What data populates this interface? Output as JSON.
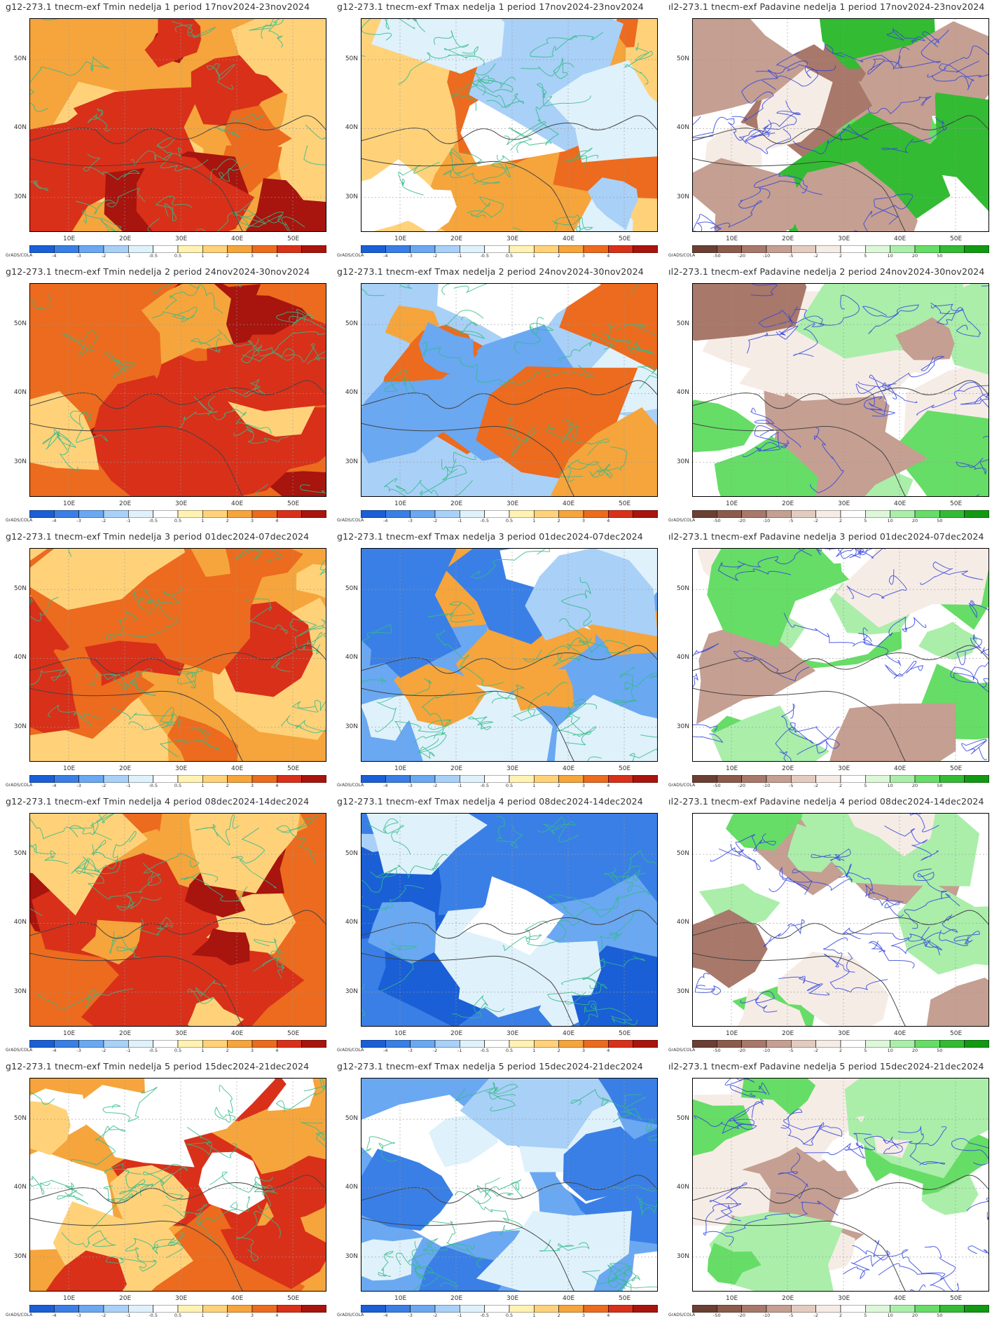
{
  "axes": {
    "lat_labels": [
      "50N",
      "40N",
      "30N"
    ],
    "lat_values": [
      50,
      40,
      30
    ],
    "lon_labels": [
      "10E",
      "20E",
      "30E",
      "40E",
      "50E"
    ],
    "lon_values": [
      10,
      20,
      30,
      40,
      50
    ],
    "lon_range": [
      3,
      56
    ],
    "lat_range": [
      25,
      56
    ]
  },
  "credit": "GrADS/COLA",
  "colorbars": {
    "temp": {
      "labels": [
        "-4",
        "-3",
        "-2",
        "-1",
        "-0.5",
        "0.5",
        "1",
        "2",
        "3",
        "4"
      ],
      "colors": [
        "#1a5fd6",
        "#3a7fe6",
        "#6aa8f2",
        "#a9d0f7",
        "#dff1fb",
        "#ffffff",
        "#fff2b3",
        "#ffd27a",
        "#f5a53c",
        "#ec6b1e",
        "#d9301a",
        "#a8140e"
      ]
    },
    "precip": {
      "labels": [
        "-50",
        "-20",
        "-10",
        "-5",
        "-2",
        "2",
        "5",
        "10",
        "20",
        "50"
      ],
      "colors": [
        "#6b3f33",
        "#8b5b4b",
        "#a8786a",
        "#c59f92",
        "#e3cbc0",
        "#f6ece6",
        "#ffffff",
        "#ddf7d8",
        "#aaeeaa",
        "#66dd66",
        "#33bb33",
        "#119911"
      ]
    }
  },
  "panels": [
    {
      "title": "g12-273.1 tnecm-exf Tmin nedelja 1 period 17nov2024-23nov2024",
      "kind": "temp",
      "palette": [
        "#f5a53c",
        "#ec6b1e",
        "#d9301a",
        "#ffd27a",
        "#a8140e"
      ],
      "contour": "#33bb88"
    },
    {
      "title": "g12-273.1 tnecm-exf Tmax nedelja 1 period 17nov2024-23nov2024",
      "kind": "temp",
      "palette": [
        "#ffd27a",
        "#f5a53c",
        "#ec6b1e",
        "#ffffff",
        "#dff1fb",
        "#a9d0f7"
      ],
      "contour": "#33bb88"
    },
    {
      "title": "ıl2-273.1 tnecm-exf Padavine nedelja 1 period 17nov2024-23nov2024",
      "kind": "precip",
      "palette": [
        "#ffffff",
        "#66dd66",
        "#33bb33",
        "#c59f92",
        "#a8786a",
        "#f6ece6"
      ],
      "contour": "#3344dd"
    },
    {
      "title": "g12-273.1 tnecm-exf Tmin nedelja 2 period 24nov2024-30nov2024",
      "kind": "temp",
      "palette": [
        "#ec6b1e",
        "#d9301a",
        "#f5a53c",
        "#a8140e",
        "#ffd27a"
      ],
      "contour": "#33bb88"
    },
    {
      "title": "g12-273.1 tnecm-exf Tmax nedelja 2 period 24nov2024-30nov2024",
      "kind": "temp",
      "palette": [
        "#a9d0f7",
        "#dff1fb",
        "#6aa8f2",
        "#ffffff",
        "#f5a53c",
        "#ec6b1e"
      ],
      "contour": "#33bb88"
    },
    {
      "title": "ıl2-273.1 tnecm-exf Padavine nedelja 2 period 24nov2024-30nov2024",
      "kind": "precip",
      "palette": [
        "#ffffff",
        "#aaeeaa",
        "#66dd66",
        "#a8786a",
        "#c59f92",
        "#f6ece6"
      ],
      "contour": "#3344dd"
    },
    {
      "title": "g12-273.1 tnecm-exf Tmin nedelja 3 period 01dec2024-07dec2024",
      "kind": "temp",
      "palette": [
        "#f5a53c",
        "#ec6b1e",
        "#d9301a",
        "#ffd27a",
        "#ec6b1e"
      ],
      "contour": "#33bb88"
    },
    {
      "title": "g12-273.1 tnecm-exf Tmax nedelja 3 period 01dec2024-07dec2024",
      "kind": "temp",
      "palette": [
        "#6aa8f2",
        "#a9d0f7",
        "#3a7fe6",
        "#dff1fb",
        "#ffffff",
        "#f5a53c"
      ],
      "contour": "#33bb88"
    },
    {
      "title": "ıl2-273.1 tnecm-exf Padavine nedelja 3 period 01dec2024-07dec2024",
      "kind": "precip",
      "palette": [
        "#ffffff",
        "#aaeeaa",
        "#66dd66",
        "#c59f92",
        "#f6ece6",
        "#ffffff"
      ],
      "contour": "#3344dd"
    },
    {
      "title": "g12-273.1 tnecm-exf Tmin nedelja 4 period 08dec2024-14dec2024",
      "kind": "temp",
      "palette": [
        "#ec6b1e",
        "#f5a53c",
        "#d9301a",
        "#ffd27a",
        "#a8140e"
      ],
      "contour": "#33bb88"
    },
    {
      "title": "g12-273.1 tnecm-exf Tmax nedelja 4 period 08dec2024-14dec2024",
      "kind": "temp",
      "palette": [
        "#3a7fe6",
        "#6aa8f2",
        "#1a5fd6",
        "#a9d0f7",
        "#dff1fb",
        "#ffffff"
      ],
      "contour": "#33bb88"
    },
    {
      "title": "ıl2-273.1 tnecm-exf Padavine nedelja 4 period 08dec2024-14dec2024",
      "kind": "precip",
      "palette": [
        "#ffffff",
        "#a8786a",
        "#c59f92",
        "#66dd66",
        "#aaeeaa",
        "#f6ece6"
      ],
      "contour": "#3344dd"
    },
    {
      "title": "g12-273.1 tnecm-exf Tmin nedelja 5 period 15dec2024-21dec2024",
      "kind": "temp",
      "palette": [
        "#f5a53c",
        "#d9301a",
        "#ffd27a",
        "#ffffff",
        "#ec6b1e"
      ],
      "contour": "#33bb88"
    },
    {
      "title": "g12-273.1 tnecm-exf Tmax nedelja 5 period 15dec2024-21dec2024",
      "kind": "temp",
      "palette": [
        "#6aa8f2",
        "#3a7fe6",
        "#a9d0f7",
        "#dff1fb",
        "#1a5fd6",
        "#ffffff"
      ],
      "contour": "#33bb88"
    },
    {
      "title": "ıl2-273.1 tnecm-exf Padavine nedelja 5 period 15dec2024-21dec2024",
      "kind": "precip",
      "palette": [
        "#ffffff",
        "#f6ece6",
        "#c59f92",
        "#aaeeaa",
        "#66dd66",
        "#ffffff"
      ],
      "contour": "#3344dd"
    }
  ]
}
